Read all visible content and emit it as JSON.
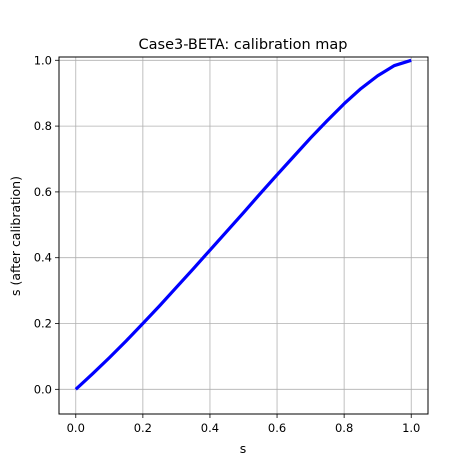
{
  "chart_data": {
    "type": "line",
    "title": "Case3-BETA: calibration map",
    "xlabel": "s",
    "ylabel": "s (after calibration)",
    "xlim": [
      -0.05,
      1.05
    ],
    "ylim": [
      -0.075,
      1.01
    ],
    "xticks": [
      0.0,
      0.2,
      0.4,
      0.6,
      0.8,
      1.0
    ],
    "xtick_labels": [
      "0.0",
      "0.2",
      "0.4",
      "0.6",
      "0.8",
      "1.0"
    ],
    "yticks": [
      0.0,
      0.2,
      0.4,
      0.6,
      0.8,
      1.0
    ],
    "ytick_labels": [
      "0.0",
      "0.2",
      "0.4",
      "0.6",
      "0.8",
      "1.0"
    ],
    "grid": true,
    "series": [
      {
        "color": "#0000ff",
        "x": [
          0.0,
          0.05,
          0.1,
          0.15,
          0.2,
          0.25,
          0.3,
          0.35,
          0.4,
          0.45,
          0.5,
          0.55,
          0.6,
          0.65,
          0.7,
          0.75,
          0.8,
          0.85,
          0.9,
          0.95,
          1.0
        ],
        "y": [
          0.0,
          0.047,
          0.096,
          0.147,
          0.2,
          0.254,
          0.31,
          0.366,
          0.423,
          0.48,
          0.537,
          0.595,
          0.652,
          0.708,
          0.764,
          0.817,
          0.868,
          0.914,
          0.953,
          0.984,
          1.0
        ]
      }
    ]
  }
}
